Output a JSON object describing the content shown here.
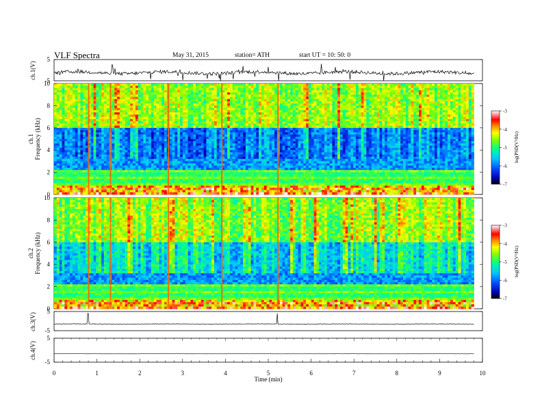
{
  "header": {
    "title": "VLF  Spectra",
    "date": "May 31, 2015",
    "station": "station= ATH",
    "start": "start  UT  =    10: 50: 0"
  },
  "chart_data": [
    {
      "type": "line",
      "panel": "ch1-waveform",
      "ylabel": "ch.1(V)",
      "ylim": [
        -5,
        5
      ],
      "yticks": [
        "5",
        "-5"
      ],
      "xlim": [
        0,
        10
      ],
      "baseline": -1.2,
      "color": "#000000"
    },
    {
      "type": "heatmap",
      "panel": "ch1-spectrogram",
      "ylabel": [
        "ch.1",
        "Frequency  (kHz)"
      ],
      "ylim": [
        0,
        10
      ],
      "yticks": [
        "0",
        "2",
        "4",
        "6",
        "8",
        "10"
      ],
      "xlim": [
        0,
        9.8
      ],
      "colorbar": {
        "label": "log(PSD(V²/Hz)",
        "range": [
          -7,
          -3
        ],
        "ticks": [
          "-3",
          "-4",
          "-5",
          "-6",
          "-7"
        ]
      }
    },
    {
      "type": "heatmap",
      "panel": "ch2-spectrogram",
      "ylabel": [
        "ch.2",
        "Frequency  (kHz)"
      ],
      "ylim": [
        0,
        10
      ],
      "yticks": [
        "0",
        "2",
        "4",
        "6",
        "8",
        "10"
      ],
      "xlim": [
        0,
        9.8
      ],
      "colorbar": {
        "label": "log(PSD(V²/Hz)",
        "range": [
          -7,
          -3
        ],
        "ticks": [
          "-3",
          "-4",
          "-5",
          "-6",
          "-7"
        ]
      }
    },
    {
      "type": "line",
      "panel": "ch3-waveform",
      "ylabel": "ch.3(V)",
      "ylim": [
        -5,
        5
      ],
      "yticks": [
        "5",
        "-5"
      ],
      "xlim": [
        0,
        9.8
      ],
      "baseline": -1.5,
      "spikes": [
        0.79,
        5.21
      ]
    },
    {
      "type": "line",
      "panel": "ch4-waveform",
      "ylabel": "ch.4(V)",
      "ylim": [
        -5,
        5
      ],
      "yticks": [
        "5",
        "-5"
      ],
      "xlim": [
        0,
        9.8
      ],
      "baseline": -1.5
    }
  ],
  "x_axis": {
    "label": "Time  (min)",
    "ticks": [
      "0",
      "1",
      "2",
      "3",
      "4",
      "5",
      "6",
      "7",
      "8",
      "9",
      "10"
    ],
    "range": [
      0,
      10
    ]
  }
}
